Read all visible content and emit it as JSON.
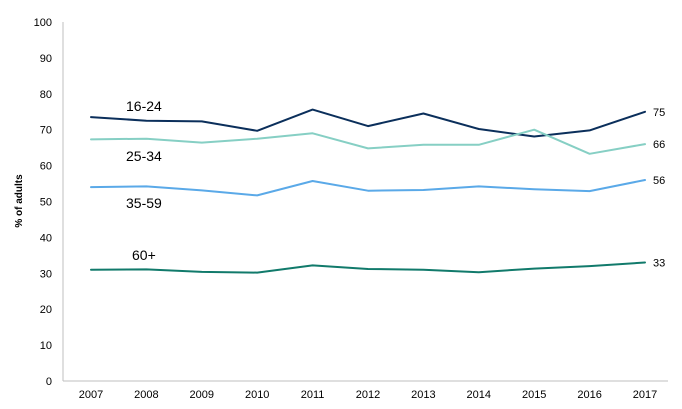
{
  "chart_data": {
    "type": "line",
    "title": "",
    "xlabel": "",
    "ylabel": "% of adults",
    "ylim": [
      0,
      100
    ],
    "yticks": [
      "0",
      "10",
      "20",
      "30",
      "40",
      "50",
      "60",
      "70",
      "80",
      "90",
      "100"
    ],
    "categories": [
      "2007",
      "2008",
      "2009",
      "2010",
      "2011",
      "2012",
      "2013",
      "2014",
      "2015",
      "2016",
      "2017"
    ],
    "grid": false,
    "series": [
      {
        "name": "16-24",
        "color": "#0b2f5b",
        "values": [
          73.5,
          72.5,
          72.3,
          69.7,
          75.6,
          71.0,
          74.5,
          70.2,
          68.1,
          69.8,
          75
        ],
        "end_label": "75"
      },
      {
        "name": "25-34",
        "color": "#86cfc4",
        "values": [
          67.3,
          67.5,
          66.4,
          67.5,
          69.0,
          64.8,
          65.8,
          65.8,
          70.0,
          63.3,
          66
        ],
        "end_label": "66"
      },
      {
        "name": "35-59",
        "color": "#5aa9e8",
        "values": [
          54.0,
          54.2,
          53.1,
          51.7,
          55.7,
          53.0,
          53.2,
          54.2,
          53.4,
          52.9,
          56
        ],
        "end_label": "56"
      },
      {
        "name": "60+",
        "color": "#117a6b",
        "values": [
          31.0,
          31.1,
          30.4,
          30.2,
          32.2,
          31.2,
          31.0,
          30.3,
          31.3,
          32.0,
          33
        ],
        "end_label": "33"
      }
    ]
  }
}
